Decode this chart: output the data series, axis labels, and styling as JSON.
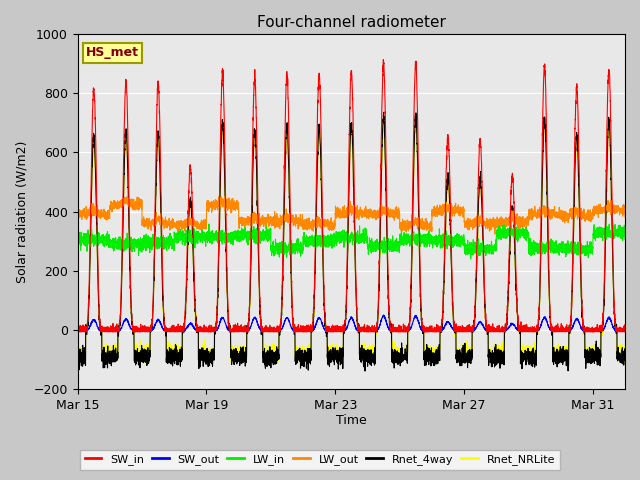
{
  "title": "Four-channel radiometer",
  "xlabel": "Time",
  "ylabel": "Solar radiation (W/m2)",
  "ylim": [
    -200,
    1000
  ],
  "fig_bg_color": "#c8c8c8",
  "plot_bg_color": "#e8e8e8",
  "series": {
    "SW_in": {
      "color": "#ff0000",
      "lw": 0.8
    },
    "SW_out": {
      "color": "#0000ff",
      "lw": 0.8
    },
    "LW_in": {
      "color": "#00ee00",
      "lw": 0.8
    },
    "LW_out": {
      "color": "#ff8800",
      "lw": 0.8
    },
    "Rnet_4way": {
      "color": "#000000",
      "lw": 0.8
    },
    "Rnet_NRLite": {
      "color": "#ffff00",
      "lw": 0.8
    }
  },
  "xtick_labels": [
    "Mar 15",
    "Mar 19",
    "Mar 23",
    "Mar 27",
    "Mar 31"
  ],
  "xtick_positions": [
    0,
    4,
    8,
    12,
    16
  ],
  "station_label": "HS_met",
  "station_label_color": "#800000",
  "station_box_facecolor": "#ffff99",
  "station_box_edgecolor": "#999900",
  "n_days": 17,
  "pts_per_day": 288,
  "sw_in_peaks": [
    820,
    840,
    830,
    550,
    870,
    850,
    860,
    860,
    870,
    900,
    900,
    650,
    640,
    520,
    890,
    820,
    880
  ],
  "sw_out_peaks": [
    35,
    38,
    35,
    22,
    42,
    42,
    42,
    42,
    42,
    48,
    48,
    28,
    28,
    22,
    42,
    38,
    42
  ],
  "lw_in_base": 310,
  "lw_out_base": 380,
  "rnet_scale": 0.8,
  "rnet_nr_scale": 0.78,
  "night_rnet": -90,
  "night_rnet_nr": -75
}
